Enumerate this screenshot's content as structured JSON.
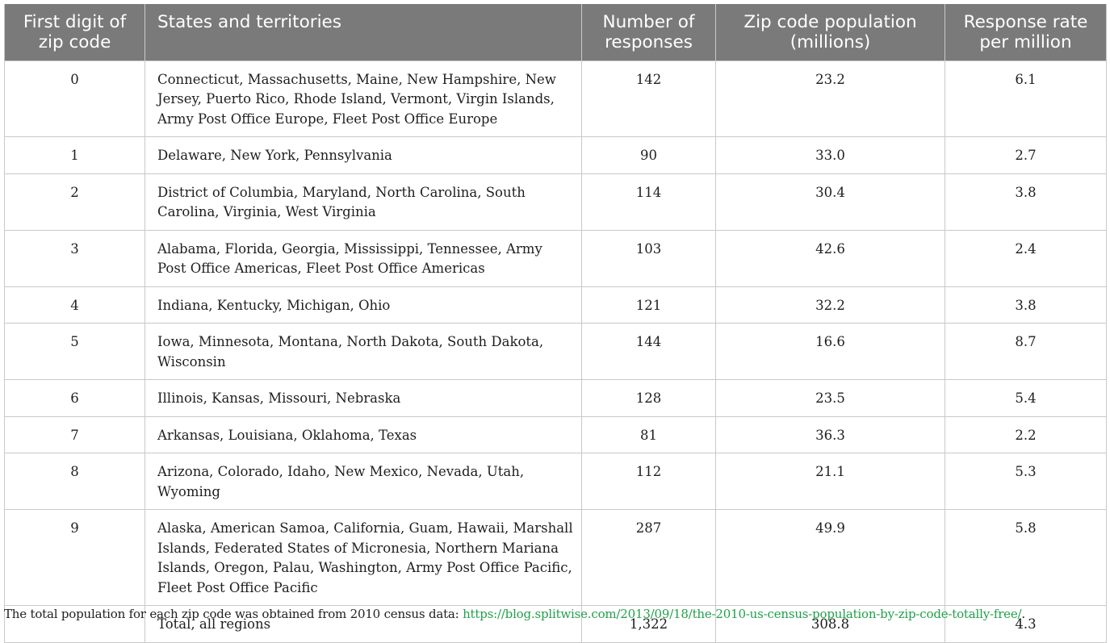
{
  "table": {
    "headers": [
      "First digit of zip code",
      "States and territories",
      "Number of responses",
      "Zip code population (millions)",
      "Response rate per million"
    ],
    "rows": [
      [
        "0",
        "Connecticut, Massachusetts, Maine, New Hampshire, New Jersey, Puerto Rico, Rhode Island, Vermont, Virgin Islands, Army Post Office Europe, Fleet Post Office Europe",
        "142",
        "23.2",
        "6.1"
      ],
      [
        "1",
        "Delaware, New York, Pennsylvania",
        "90",
        "33.0",
        "2.7"
      ],
      [
        "2",
        "District of Columbia, Maryland, North Carolina, South Carolina, Virginia, West Virginia",
        "114",
        "30.4",
        "3.8"
      ],
      [
        "3",
        "Alabama, Florida, Georgia, Mississippi, Tennessee, Army Post Office Americas, Fleet Post Office Americas",
        "103",
        "42.6",
        "2.4"
      ],
      [
        "4",
        "Indiana, Kentucky, Michigan, Ohio",
        "121",
        "32.2",
        "3.8"
      ],
      [
        "5",
        "Iowa, Minnesota, Montana, North Dakota, South Dakota, Wisconsin",
        "144",
        "16.6",
        "8.7"
      ],
      [
        "6",
        "Illinois, Kansas, Missouri, Nebraska",
        "128",
        "23.5",
        "5.4"
      ],
      [
        "7",
        "Arkansas, Louisiana, Oklahoma, Texas",
        "81",
        "36.3",
        "2.2"
      ],
      [
        "8",
        "Arizona, Colorado, Idaho, New Mexico, Nevada, Utah, Wyoming",
        "112",
        "21.1",
        "5.3"
      ],
      [
        "9",
        "Alaska, American Samoa, California, Guam, Hawaii, Marshall Islands, Federated States of Micronesia, Northern Mariana Islands, Oregon, Palau, Washington, Army Post Office Pacific, Fleet Post Office Pacific",
        "287",
        "49.9",
        "5.8"
      ],
      [
        "",
        "Total, all regions",
        "1,322",
        "308.8",
        "4.3"
      ]
    ]
  },
  "footnote": {
    "text": "The total population for each zip code was obtained from 2010 census data: ",
    "link": "https://blog.splitwise.com/2013/09/18/the-2010-us-census-population-by-zip-code-totally-free/",
    "end": "."
  },
  "colors": {
    "header_bg": "#7a7a7a",
    "header_text": "#ffffff",
    "grid": "#c9c9c9",
    "link": "#21a04a"
  }
}
